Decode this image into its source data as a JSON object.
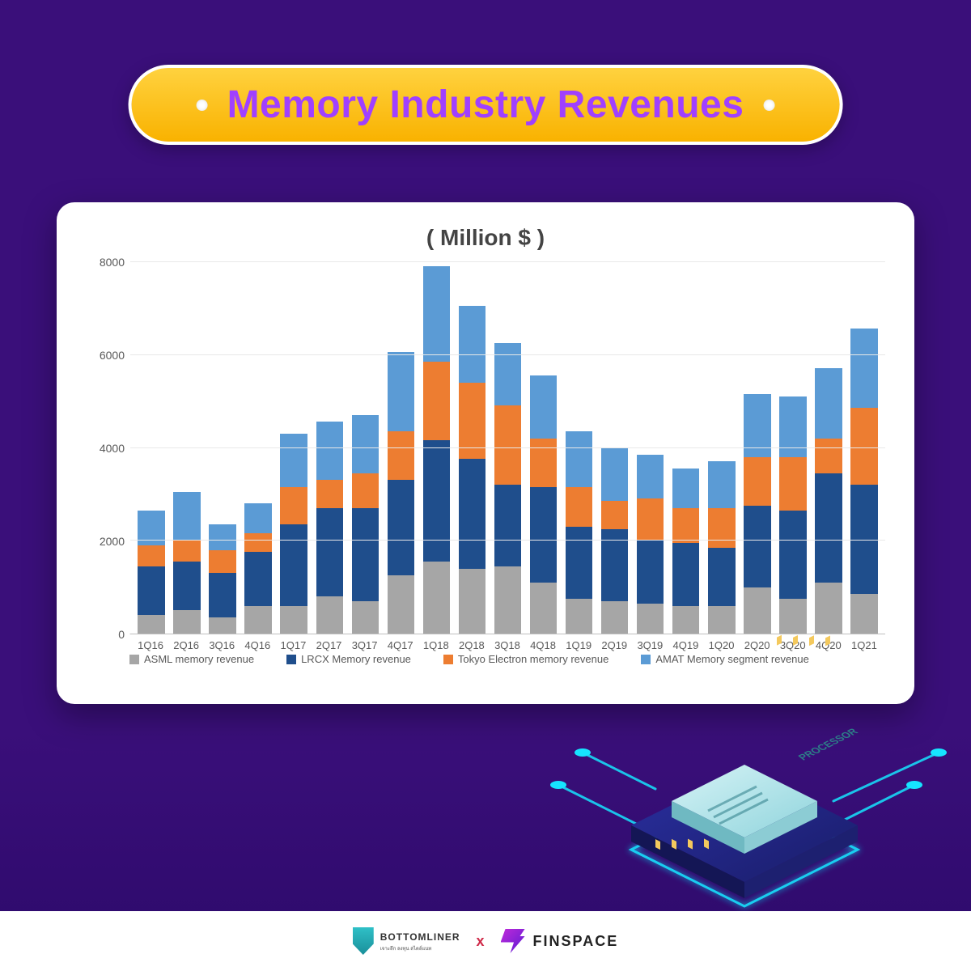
{
  "title": "Memory Industry Revenues",
  "chart": {
    "type": "stacked-bar",
    "subtitle": "( Million $ )",
    "background_color": "#ffffff",
    "grid_color": "#e8e8e8",
    "axis_color": "#bfbfbf",
    "label_color": "#595959",
    "label_fontsize": 13,
    "title_fontsize": 28,
    "ylim": [
      0,
      8000
    ],
    "ytick_step": 2000,
    "yticks": [
      0,
      2000,
      4000,
      6000,
      8000
    ],
    "bar_width": 0.76,
    "categories": [
      "1Q16",
      "2Q16",
      "3Q16",
      "4Q16",
      "1Q17",
      "2Q17",
      "3Q17",
      "4Q17",
      "1Q18",
      "2Q18",
      "3Q18",
      "4Q18",
      "1Q19",
      "2Q19",
      "3Q19",
      "4Q19",
      "1Q20",
      "2Q20",
      "3Q20",
      "4Q20",
      "1Q21"
    ],
    "series": [
      {
        "name": "ASML memory revenue",
        "color": "#a6a6a6",
        "values": [
          400,
          500,
          350,
          600,
          600,
          800,
          700,
          1250,
          1550,
          1400,
          1450,
          1100,
          750,
          700,
          650,
          600,
          600,
          1000,
          750,
          1100,
          850
        ]
      },
      {
        "name": "LRCX Memory revenue",
        "color": "#1f4e8c",
        "values": [
          1050,
          1050,
          950,
          1150,
          1750,
          1900,
          2000,
          2050,
          2600,
          2350,
          1750,
          2050,
          1550,
          1550,
          1350,
          1350,
          1250,
          1750,
          1900,
          2350,
          2350
        ]
      },
      {
        "name": "Tokyo Electron memory revenue",
        "color": "#ed7d31",
        "values": [
          450,
          450,
          500,
          400,
          800,
          600,
          750,
          1050,
          1700,
          1650,
          1700,
          1050,
          850,
          600,
          900,
          750,
          850,
          1050,
          1150,
          750,
          1650
        ]
      },
      {
        "name": "AMAT Memory segment revenue",
        "color": "#5b9bd5",
        "values": [
          750,
          1050,
          550,
          650,
          1150,
          1250,
          1250,
          1700,
          2050,
          1650,
          1350,
          1350,
          1200,
          1150,
          950,
          850,
          1000,
          1350,
          1300,
          1500,
          1700
        ]
      }
    ]
  },
  "footer": {
    "brand_a": "BOTTOMLINER",
    "brand_a_sub": "เจาะลึก ลงทุน สไตล์แนท",
    "separator": "x",
    "brand_b": "FINSPACE"
  },
  "colors": {
    "page_bg_top": "#3a0f7a",
    "page_bg_bottom": "#2d0a6b",
    "pill_bg_top": "#ffd23f",
    "pill_bg_bottom": "#f9b200",
    "pill_border": "#ffffff",
    "title_text": "#a040ff",
    "accent_cyan": "#16e4ff"
  }
}
